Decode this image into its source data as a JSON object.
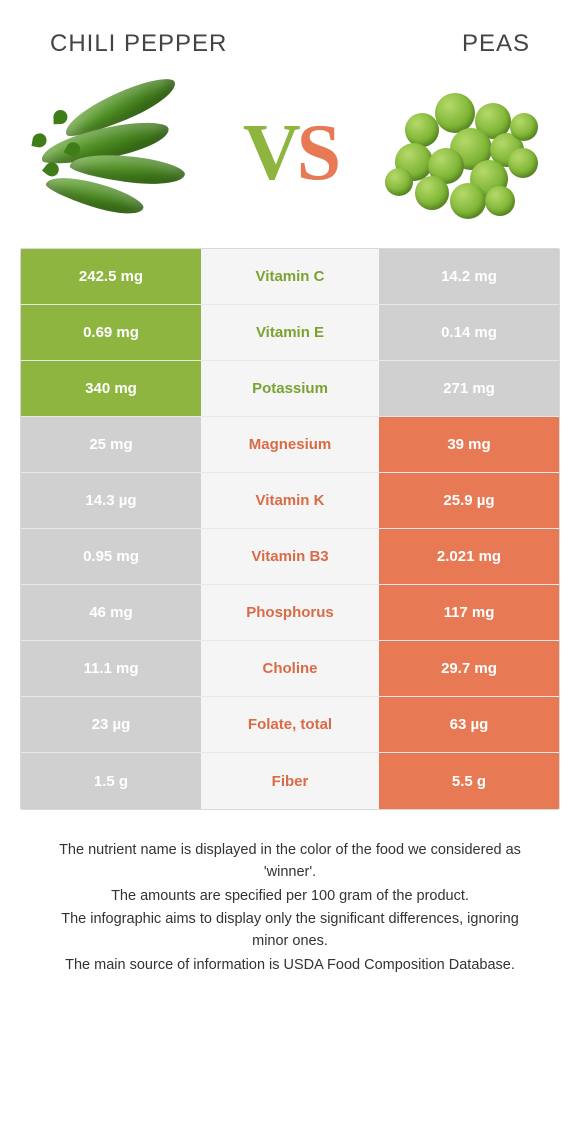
{
  "title_left": "Chili pepper",
  "title_right": "Peas",
  "vs_v": "V",
  "vs_s": "S",
  "colors": {
    "green": "#8eb53f",
    "orange": "#e77a54",
    "grey": "#d0d0d0",
    "txt_green": "#7aa332",
    "txt_orange": "#d96b47",
    "mid_bg": "#f5f5f5",
    "border": "#d9d9d9"
  },
  "rows": [
    {
      "left": "242.5 mg",
      "label": "Vitamin C",
      "right": "14.2 mg",
      "winner": "left"
    },
    {
      "left": "0.69 mg",
      "label": "Vitamin E",
      "right": "0.14 mg",
      "winner": "left"
    },
    {
      "left": "340 mg",
      "label": "Potassium",
      "right": "271 mg",
      "winner": "left"
    },
    {
      "left": "25 mg",
      "label": "Magnesium",
      "right": "39 mg",
      "winner": "right"
    },
    {
      "left": "14.3 µg",
      "label": "Vitamin K",
      "right": "25.9 µg",
      "winner": "right"
    },
    {
      "left": "0.95 mg",
      "label": "Vitamin B3",
      "right": "2.021 mg",
      "winner": "right"
    },
    {
      "left": "46 mg",
      "label": "Phosphorus",
      "right": "117 mg",
      "winner": "right"
    },
    {
      "left": "11.1 mg",
      "label": "Choline",
      "right": "29.7 mg",
      "winner": "right"
    },
    {
      "left": "23 µg",
      "label": "Folate, total",
      "right": "63 µg",
      "winner": "right"
    },
    {
      "left": "1.5 g",
      "label": "Fiber",
      "right": "5.5 g",
      "winner": "right"
    }
  ],
  "footer": [
    "The nutrient name is displayed in the color of the food we considered as 'winner'.",
    "The amounts are specified per 100 gram of the product.",
    "The infographic aims to display only the significant differences, ignoring minor ones.",
    "The main source of information is USDA Food Composition Database."
  ]
}
